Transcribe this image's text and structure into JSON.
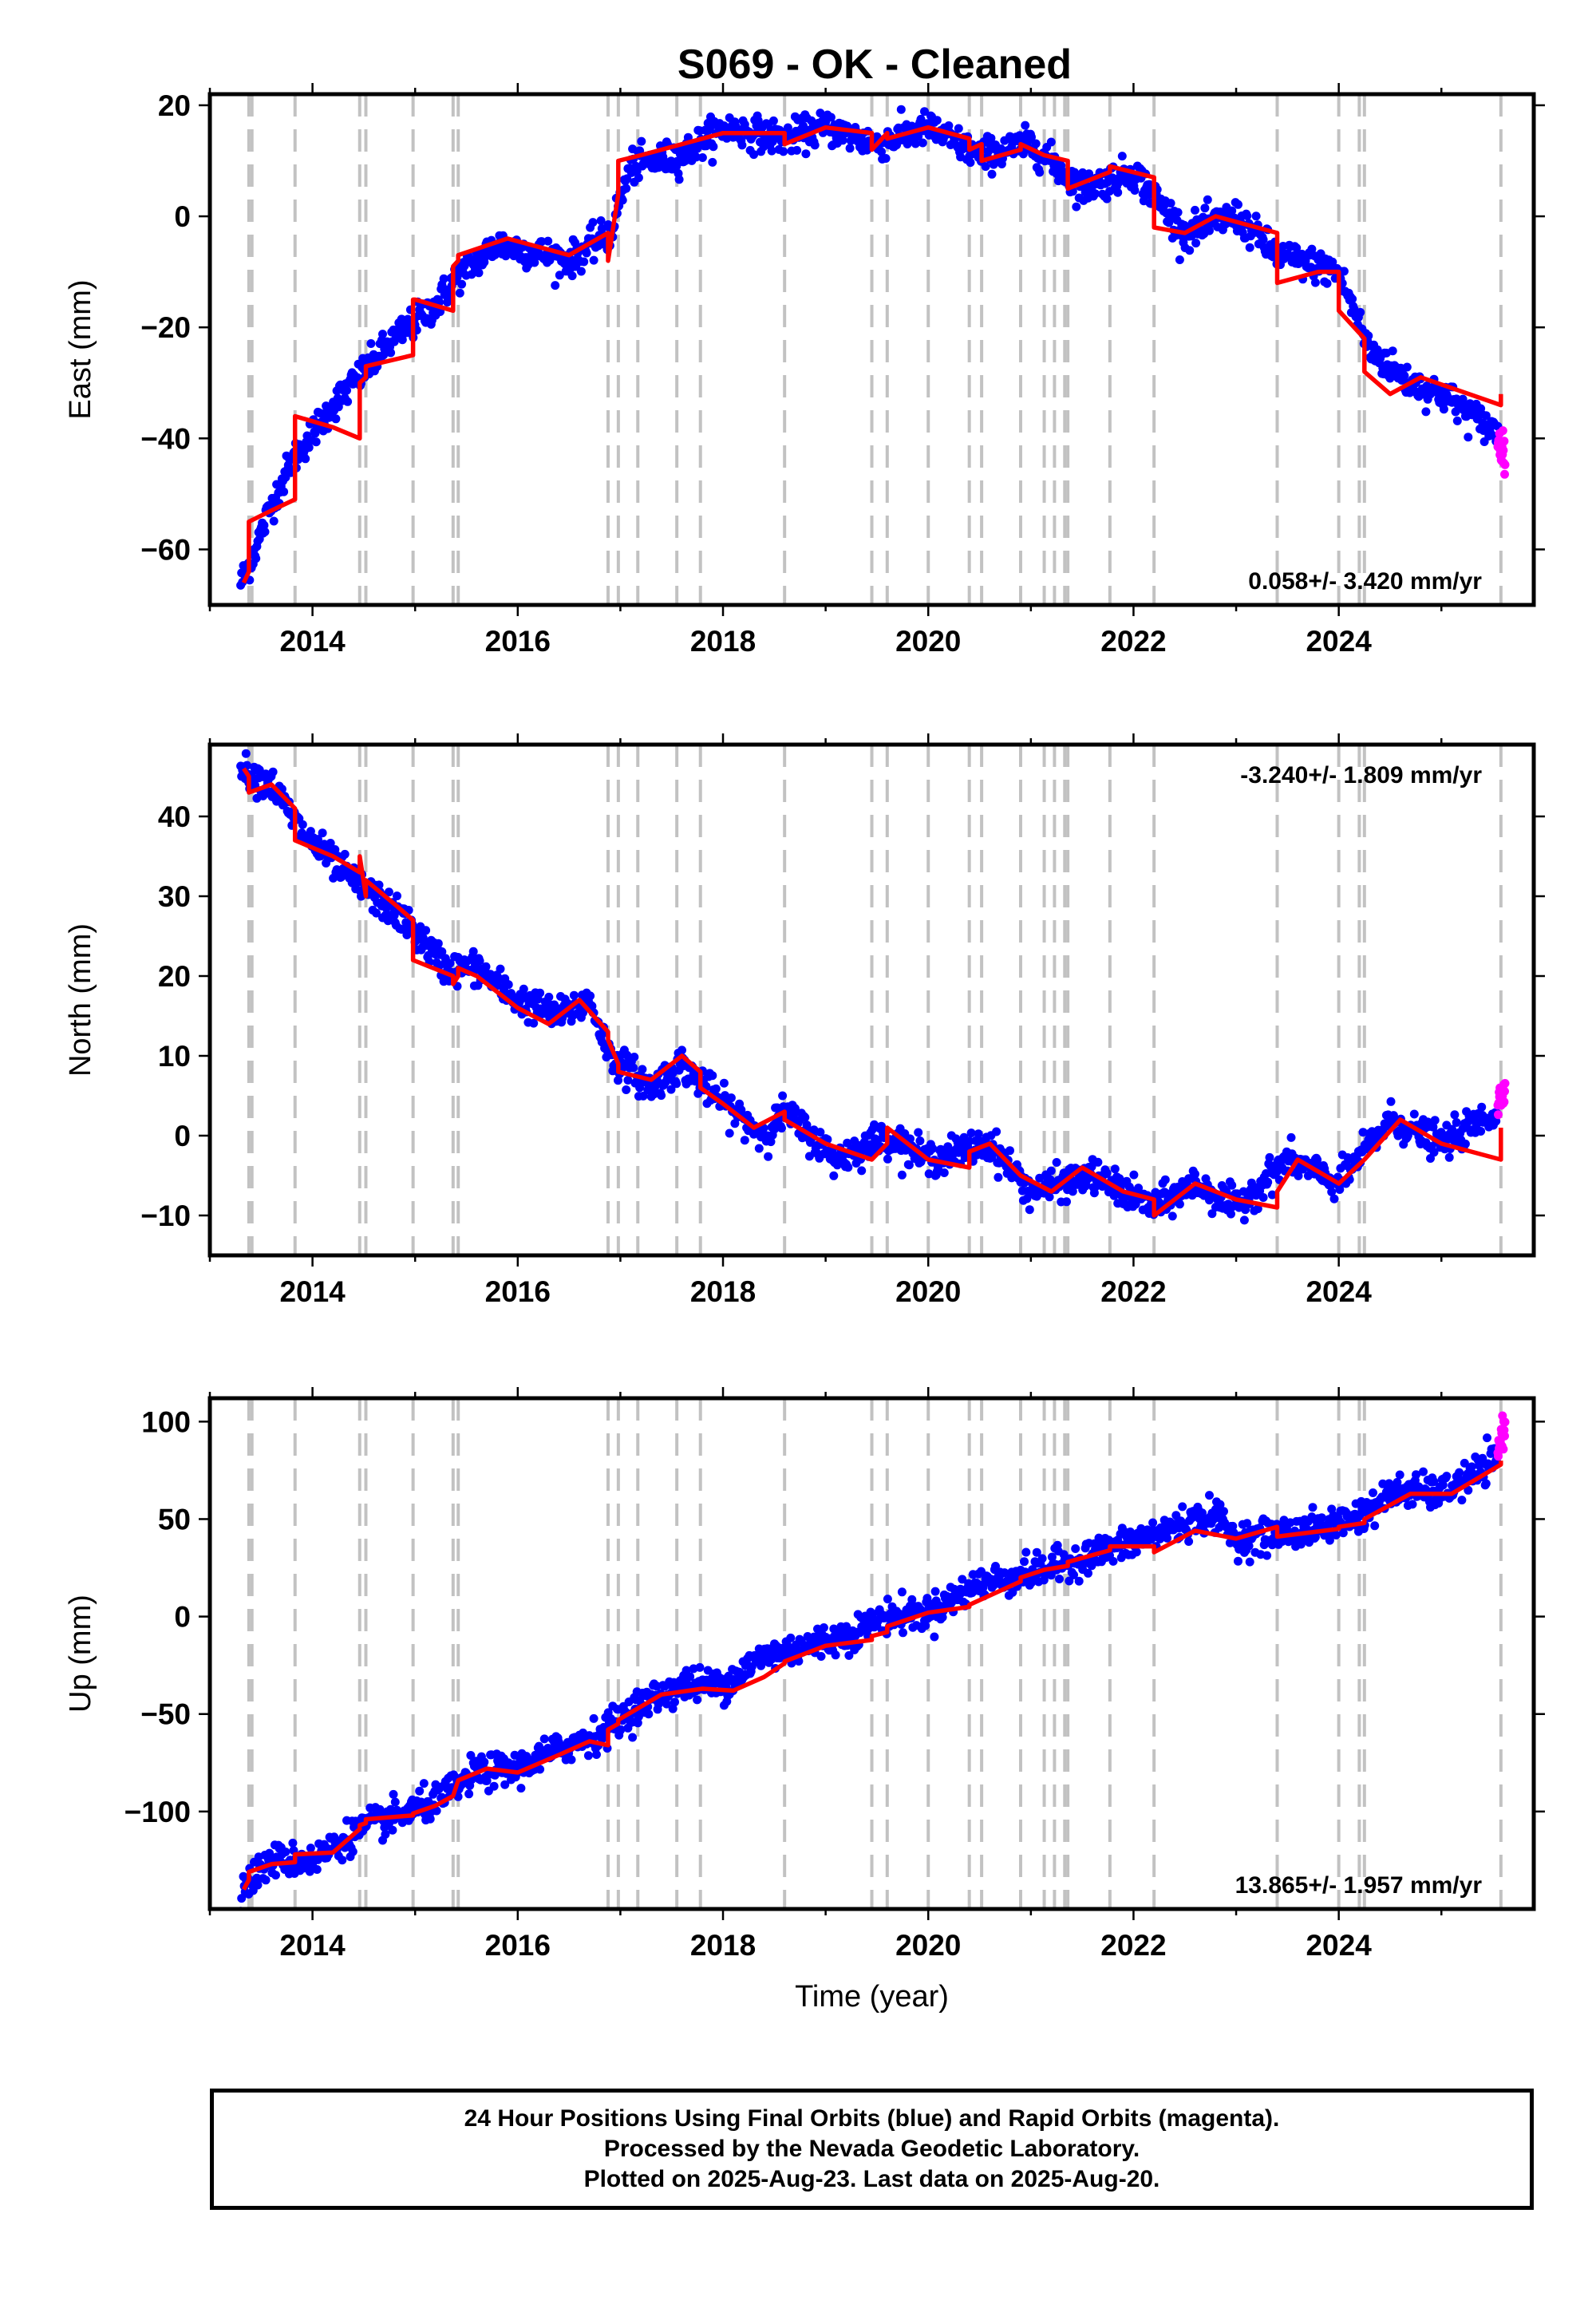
{
  "title": "S069  - OK - Cleaned",
  "footer": {
    "line1": "24 Hour Positions Using Final Orbits (blue) and Rapid Orbits (magenta).",
    "line2": "Processed by the Nevada Geodetic Laboratory.",
    "line3": "Plotted on 2025-Aug-23. Last data on 2025-Aug-20."
  },
  "colors": {
    "final_orbits": "#0000ff",
    "rapid_orbits": "#ff00ff",
    "model": "#ff0000",
    "breaks": "#c2c2c2"
  },
  "chart_data": [
    {
      "type": "scatter",
      "ylabel": "East (mm)",
      "xlabel": "",
      "xlim": [
        2013.0,
        2025.9
      ],
      "ylim": [
        -70,
        22
      ],
      "xticks": [
        2014,
        2016,
        2018,
        2020,
        2022,
        2024
      ],
      "yticks": [
        -60,
        -40,
        -20,
        0,
        20
      ],
      "rate_text": "0.058+/- 3.420 mm/yr",
      "rate_position": "bottom-right",
      "breaks": [
        2013.38,
        2013.41,
        2013.83,
        2014.46,
        2014.52,
        2014.98,
        2015.37,
        2015.42,
        2016.88,
        2016.98,
        2017.17,
        2017.55,
        2017.78,
        2018.6,
        2019.45,
        2019.6,
        2020.0,
        2020.4,
        2020.52,
        2020.9,
        2021.13,
        2021.23,
        2021.33,
        2021.36,
        2021.77,
        2022.2,
        2023.4,
        2024.0,
        2024.2,
        2024.25,
        2025.58
      ],
      "series": [
        {
          "name": "Final Orbits",
          "color": "#0000ff",
          "start": 2013.3,
          "end": 2025.55,
          "x": [
            2013.3,
            2013.4,
            2013.6,
            2013.8,
            2014.2,
            2014.5,
            2014.8,
            2015.2,
            2015.4,
            2015.8,
            2016.3,
            2016.5,
            2016.9,
            2017.1,
            2017.6,
            2018.0,
            2018.6,
            2019.0,
            2019.5,
            2020.0,
            2020.5,
            2021.0,
            2021.5,
            2022.0,
            2022.5,
            2023.0,
            2023.4,
            2024.0,
            2024.3,
            2024.7,
            2025.0,
            2025.3,
            2025.55
          ],
          "y": [
            -66,
            -62,
            -52,
            -44,
            -34,
            -28,
            -22,
            -16,
            -11,
            -5,
            -7,
            -8,
            -3,
            9,
            11,
            16,
            14,
            16,
            13,
            16,
            11,
            13,
            5,
            8,
            -3,
            0,
            -7,
            -10,
            -24,
            -30,
            -32,
            -36,
            -39
          ]
        },
        {
          "name": "Rapid Orbits",
          "color": "#ff00ff",
          "start": 2025.55,
          "end": 2025.62,
          "x": [
            2025.55,
            2025.62
          ],
          "y": [
            -40,
            -43
          ]
        }
      ],
      "model": {
        "name": "Model",
        "x": [
          2013.33,
          2013.38,
          2013.38,
          2013.6,
          2013.83,
          2013.83,
          2014.2,
          2014.46,
          2014.46,
          2014.52,
          2014.52,
          2014.98,
          2014.98,
          2015.0,
          2015.37,
          2015.37,
          2015.42,
          2015.42,
          2015.9,
          2016.5,
          2016.88,
          2016.88,
          2016.98,
          2016.98,
          2017.2,
          2017.6,
          2018.0,
          2018.6,
          2018.6,
          2019.0,
          2019.45,
          2019.45,
          2019.6,
          2019.6,
          2020.0,
          2020.4,
          2020.4,
          2020.52,
          2020.52,
          2020.9,
          2020.9,
          2021.13,
          2021.36,
          2021.36,
          2021.77,
          2021.77,
          2022.2,
          2022.2,
          2022.5,
          2022.8,
          2023.4,
          2023.4,
          2023.8,
          2024.0,
          2024.0,
          2024.25,
          2024.25,
          2024.5,
          2024.8,
          2025.58,
          2025.58
        ],
        "y": [
          -66,
          -64,
          -55,
          -53,
          -51,
          -36,
          -38,
          -40,
          -30,
          -29,
          -27,
          -25,
          -15,
          -15,
          -17,
          -9,
          -8,
          -7,
          -4,
          -7,
          -3,
          -8,
          4,
          10,
          11,
          13,
          15,
          15,
          13,
          16,
          15,
          12,
          15,
          14,
          16,
          14,
          12,
          13,
          10,
          12,
          13,
          11,
          10,
          5,
          8,
          9,
          7,
          -2,
          -3,
          0,
          -3,
          -12,
          -10,
          -10,
          -17,
          -22,
          -28,
          -32,
          -29,
          -34,
          -32
        ]
      }
    },
    {
      "type": "scatter",
      "ylabel": "North (mm)",
      "xlabel": "",
      "xlim": [
        2013.0,
        2025.9
      ],
      "ylim": [
        -15,
        49
      ],
      "xticks": [
        2014,
        2016,
        2018,
        2020,
        2022,
        2024
      ],
      "yticks": [
        -10,
        0,
        10,
        20,
        30,
        40
      ],
      "rate_text": "-3.240+/- 1.809 mm/yr",
      "rate_position": "top-right",
      "breaks": [
        2013.38,
        2013.41,
        2013.83,
        2014.46,
        2014.52,
        2014.98,
        2015.37,
        2015.42,
        2016.88,
        2016.98,
        2017.17,
        2017.55,
        2017.78,
        2018.6,
        2019.45,
        2019.6,
        2020.0,
        2020.4,
        2020.52,
        2020.9,
        2021.13,
        2021.23,
        2021.33,
        2021.36,
        2021.77,
        2022.2,
        2023.4,
        2024.0,
        2024.2,
        2024.25,
        2025.58
      ],
      "series": [
        {
          "name": "Final Orbits",
          "color": "#0000ff",
          "start": 2013.3,
          "end": 2025.55,
          "x": [
            2013.3,
            2013.6,
            2013.9,
            2014.3,
            2014.5,
            2014.9,
            2015.3,
            2015.6,
            2016.0,
            2016.4,
            2016.7,
            2016.9,
            2017.3,
            2017.6,
            2018.0,
            2018.4,
            2018.6,
            2019.1,
            2019.6,
            2020.0,
            2020.6,
            2021.0,
            2021.6,
            2022.2,
            2022.6,
            2023.0,
            2023.5,
            2024.0,
            2024.5,
            2025.0,
            2025.55
          ],
          "y": [
            46,
            44,
            38,
            33,
            31,
            27,
            21,
            21,
            17,
            15,
            17,
            10,
            6,
            9,
            4,
            0,
            3,
            -3,
            0,
            -3,
            -1,
            -7,
            -5,
            -9,
            -6,
            -9,
            -3,
            -6,
            2,
            -1,
            3
          ]
        },
        {
          "name": "Rapid Orbits",
          "color": "#ff00ff",
          "start": 2025.55,
          "end": 2025.62,
          "x": [
            2025.55,
            2025.62
          ],
          "y": [
            4,
            6
          ]
        }
      ],
      "model": {
        "name": "Model",
        "x": [
          2013.33,
          2013.38,
          2013.38,
          2013.6,
          2013.83,
          2013.83,
          2014.2,
          2014.46,
          2014.46,
          2014.52,
          2014.52,
          2014.8,
          2014.98,
          2014.98,
          2015.37,
          2015.37,
          2015.42,
          2015.42,
          2015.6,
          2016.0,
          2016.3,
          2016.6,
          2016.88,
          2016.88,
          2016.98,
          2016.98,
          2017.3,
          2017.6,
          2017.78,
          2017.78,
          2018.0,
          2018.3,
          2018.6,
          2018.6,
          2019.0,
          2019.45,
          2019.45,
          2019.6,
          2019.6,
          2020.0,
          2020.4,
          2020.4,
          2020.6,
          2020.9,
          2021.2,
          2021.5,
          2021.9,
          2022.2,
          2022.2,
          2022.6,
          2023.0,
          2023.4,
          2023.4,
          2023.6,
          2024.0,
          2024.0,
          2024.25,
          2024.25,
          2024.6,
          2025.0,
          2025.58,
          2025.58
        ],
        "y": [
          46,
          45,
          43,
          44,
          41,
          37,
          35,
          33,
          35,
          30,
          32,
          29,
          27,
          22,
          20,
          19,
          20,
          21,
          20,
          16,
          14,
          17,
          13,
          12,
          9,
          8,
          7,
          10,
          8,
          6,
          4,
          1,
          3,
          2,
          -1,
          -3,
          -3,
          -1,
          1,
          -3,
          -4,
          -2,
          -1,
          -5,
          -7,
          -4,
          -7,
          -8,
          -10,
          -6,
          -8,
          -9,
          -7,
          -3,
          -6,
          -6,
          -3,
          -3,
          2,
          -1,
          -3,
          1
        ]
      }
    },
    {
      "type": "scatter",
      "ylabel": "Up (mm)",
      "xlabel": "Time (year)",
      "xlim": [
        2013.0,
        2025.9
      ],
      "ylim": [
        -150,
        112
      ],
      "xticks": [
        2014,
        2016,
        2018,
        2020,
        2022,
        2024
      ],
      "yticks": [
        -100,
        -50,
        0,
        50,
        100
      ],
      "rate_text": "13.865+/- 1.957 mm/yr",
      "rate_position": "bottom-right",
      "breaks": [
        2013.38,
        2013.41,
        2013.83,
        2014.46,
        2014.52,
        2014.98,
        2015.37,
        2015.42,
        2016.88,
        2016.98,
        2017.17,
        2017.55,
        2017.78,
        2018.6,
        2019.45,
        2019.6,
        2020.0,
        2020.4,
        2020.52,
        2020.9,
        2021.13,
        2021.23,
        2021.33,
        2021.36,
        2021.77,
        2022.2,
        2023.4,
        2024.0,
        2024.2,
        2024.25,
        2025.58
      ],
      "series": [
        {
          "name": "Final Orbits",
          "color": "#0000ff",
          "start": 2013.3,
          "end": 2025.55,
          "x": [
            2013.3,
            2013.6,
            2014.0,
            2014.5,
            2014.8,
            2015.2,
            2015.6,
            2016.0,
            2016.4,
            2016.8,
            2017.2,
            2017.6,
            2018.0,
            2018.4,
            2018.8,
            2019.2,
            2019.6,
            2020.0,
            2020.5,
            2021.0,
            2021.5,
            2022.0,
            2022.5,
            2022.8,
            2023.0,
            2023.4,
            2023.8,
            2024.2,
            2024.6,
            2025.0,
            2025.55
          ],
          "y": [
            -140,
            -125,
            -125,
            -108,
            -103,
            -95,
            -80,
            -78,
            -68,
            -60,
            -45,
            -35,
            -35,
            -20,
            -15,
            -10,
            0,
            2,
            17,
            22,
            30,
            38,
            48,
            52,
            40,
            42,
            45,
            52,
            65,
            63,
            80
          ]
        },
        {
          "name": "Rapid Orbits",
          "color": "#ff00ff",
          "start": 2025.55,
          "end": 2025.62,
          "x": [
            2025.55,
            2025.62
          ],
          "y": [
            85,
            100
          ]
        }
      ],
      "model": {
        "name": "Model",
        "x": [
          2013.33,
          2013.38,
          2013.38,
          2013.6,
          2013.83,
          2013.83,
          2014.2,
          2014.46,
          2014.46,
          2014.52,
          2014.52,
          2014.98,
          2014.98,
          2015.2,
          2015.37,
          2015.42,
          2015.7,
          2016.0,
          2016.4,
          2016.7,
          2016.88,
          2016.88,
          2016.98,
          2016.98,
          2017.4,
          2017.8,
          2018.1,
          2018.4,
          2018.6,
          2018.6,
          2019.0,
          2019.45,
          2019.45,
          2019.6,
          2019.6,
          2020.0,
          2020.4,
          2020.4,
          2020.9,
          2020.9,
          2021.13,
          2021.36,
          2021.36,
          2021.77,
          2021.77,
          2022.2,
          2022.2,
          2022.6,
          2023.0,
          2023.4,
          2023.4,
          2024.0,
          2024.0,
          2024.25,
          2024.25,
          2024.7,
          2025.1,
          2025.58,
          2025.58
        ],
        "y": [
          -140,
          -135,
          -131,
          -127,
          -126,
          -122,
          -121,
          -109,
          -107,
          -106,
          -104,
          -102,
          -101,
          -97,
          -92,
          -84,
          -78,
          -80,
          -71,
          -64,
          -66,
          -58,
          -55,
          -53,
          -40,
          -37,
          -38,
          -31,
          -24,
          -23,
          -15,
          -12,
          -10,
          -8,
          -5,
          2,
          5,
          6,
          18,
          20,
          24,
          26,
          28,
          34,
          36,
          36,
          33,
          44,
          40,
          46,
          41,
          45,
          46,
          48,
          50,
          63,
          63,
          78,
          80
        ]
      }
    }
  ]
}
